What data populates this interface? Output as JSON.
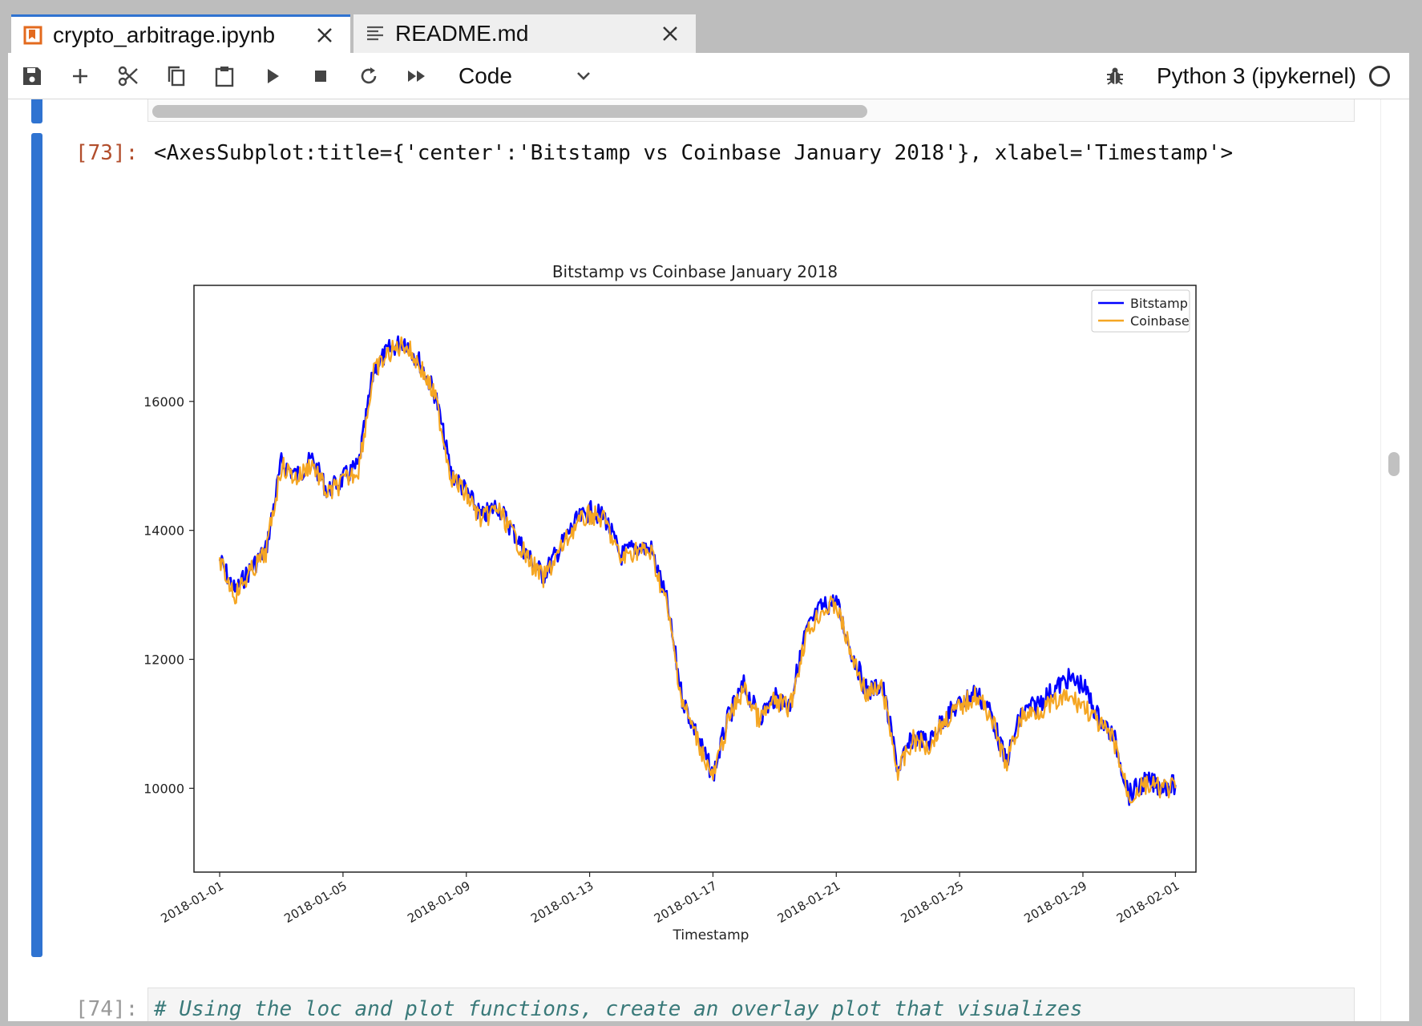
{
  "tabs": [
    {
      "label": "crypto_arbitrage.ipynb",
      "icon": "notebook-icon",
      "active": true
    },
    {
      "label": "README.md",
      "icon": "markdown-file-icon",
      "active": false
    }
  ],
  "toolbar": {
    "buttons": [
      "save-icon",
      "add-cell-icon",
      "cut-icon",
      "copy-icon",
      "paste-icon",
      "run-icon",
      "stop-icon",
      "restart-icon",
      "fast-forward-icon"
    ],
    "cell_type": "Code",
    "kernel_name": "Python 3 (ipykernel)",
    "debugger_icon": "bug-icon"
  },
  "output_cell": {
    "prompt": "[73]:",
    "text": "<AxesSubplot:title={'center':'Bitstamp vs Coinbase January 2018'}, xlabel='Timestamp'>"
  },
  "next_cell": {
    "prompt": "[74]:",
    "code": "# Using the loc and plot functions, create an overlay plot that visualizes"
  },
  "chart_data": {
    "type": "line",
    "title": "Bitstamp vs Coinbase January 2018",
    "xlabel": "Timestamp",
    "ylabel": "",
    "ylim": [
      8700,
      17800
    ],
    "xlim": [
      "2017-12-31T04:00",
      "2018-02-01T16:00"
    ],
    "yticks": [
      10000,
      12000,
      14000,
      16000
    ],
    "xticks": [
      "2018-01-01",
      "2018-01-05",
      "2018-01-09",
      "2018-01-13",
      "2018-01-17",
      "2018-01-21",
      "2018-01-25",
      "2018-01-29",
      "2018-02-01"
    ],
    "legend": "top-right",
    "grid": false,
    "x": [
      "2018-01-01",
      "2018-01-01T12:00",
      "2018-01-02",
      "2018-01-02T12:00",
      "2018-01-03",
      "2018-01-03T12:00",
      "2018-01-04",
      "2018-01-04T12:00",
      "2018-01-05",
      "2018-01-05T12:00",
      "2018-01-06",
      "2018-01-06T12:00",
      "2018-01-07",
      "2018-01-07T12:00",
      "2018-01-08",
      "2018-01-08T12:00",
      "2018-01-09",
      "2018-01-09T12:00",
      "2018-01-10",
      "2018-01-10T12:00",
      "2018-01-11",
      "2018-01-11T12:00",
      "2018-01-12",
      "2018-01-12T12:00",
      "2018-01-13",
      "2018-01-13T12:00",
      "2018-01-14",
      "2018-01-14T12:00",
      "2018-01-15",
      "2018-01-15T12:00",
      "2018-01-16",
      "2018-01-16T12:00",
      "2018-01-17",
      "2018-01-17T12:00",
      "2018-01-18",
      "2018-01-18T12:00",
      "2018-01-19",
      "2018-01-19T12:00",
      "2018-01-20",
      "2018-01-20T12:00",
      "2018-01-21",
      "2018-01-21T12:00",
      "2018-01-22",
      "2018-01-22T12:00",
      "2018-01-23",
      "2018-01-23T12:00",
      "2018-01-24",
      "2018-01-24T12:00",
      "2018-01-25",
      "2018-01-25T12:00",
      "2018-01-26",
      "2018-01-26T12:00",
      "2018-01-27",
      "2018-01-27T12:00",
      "2018-01-28",
      "2018-01-28T12:00",
      "2018-01-29",
      "2018-01-29T12:00",
      "2018-01-30",
      "2018-01-30T12:00",
      "2018-01-31",
      "2018-01-31T12:00",
      "2018-02-01"
    ],
    "series": [
      {
        "name": "Bitstamp",
        "color": "#0000ff",
        "values": [
          13550,
          13050,
          13400,
          13700,
          15050,
          14850,
          15100,
          14600,
          14800,
          15000,
          16500,
          16800,
          16950,
          16600,
          16100,
          14900,
          14600,
          14200,
          14400,
          14000,
          13600,
          13300,
          13700,
          14100,
          14300,
          14200,
          13600,
          13750,
          13700,
          12900,
          11400,
          10800,
          10200,
          11100,
          11600,
          11100,
          11400,
          11300,
          12400,
          12800,
          12900,
          12100,
          11500,
          11600,
          10300,
          10800,
          10700,
          11100,
          11300,
          11500,
          11200,
          10400,
          11150,
          11300,
          11500,
          11700,
          11600,
          11100,
          10800,
          9900,
          10100,
          10050,
          10050
        ]
      },
      {
        "name": "Coinbase",
        "color": "#f5a623",
        "values": [
          13500,
          13000,
          13350,
          13650,
          15000,
          14800,
          15050,
          14550,
          14750,
          14950,
          16450,
          16750,
          16900,
          16550,
          16050,
          14850,
          14550,
          14150,
          14350,
          13950,
          13550,
          13250,
          13650,
          14050,
          14250,
          14150,
          13550,
          13700,
          13650,
          12850,
          11350,
          10750,
          10150,
          11050,
          11550,
          11050,
          11350,
          11250,
          12350,
          12750,
          12850,
          12050,
          11450,
          11550,
          10250,
          10750,
          10650,
          11050,
          11250,
          11450,
          11150,
          10350,
          11100,
          11200,
          11300,
          11400,
          11300,
          11000,
          10750,
          9850,
          10050,
          10000,
          10000
        ]
      }
    ]
  }
}
